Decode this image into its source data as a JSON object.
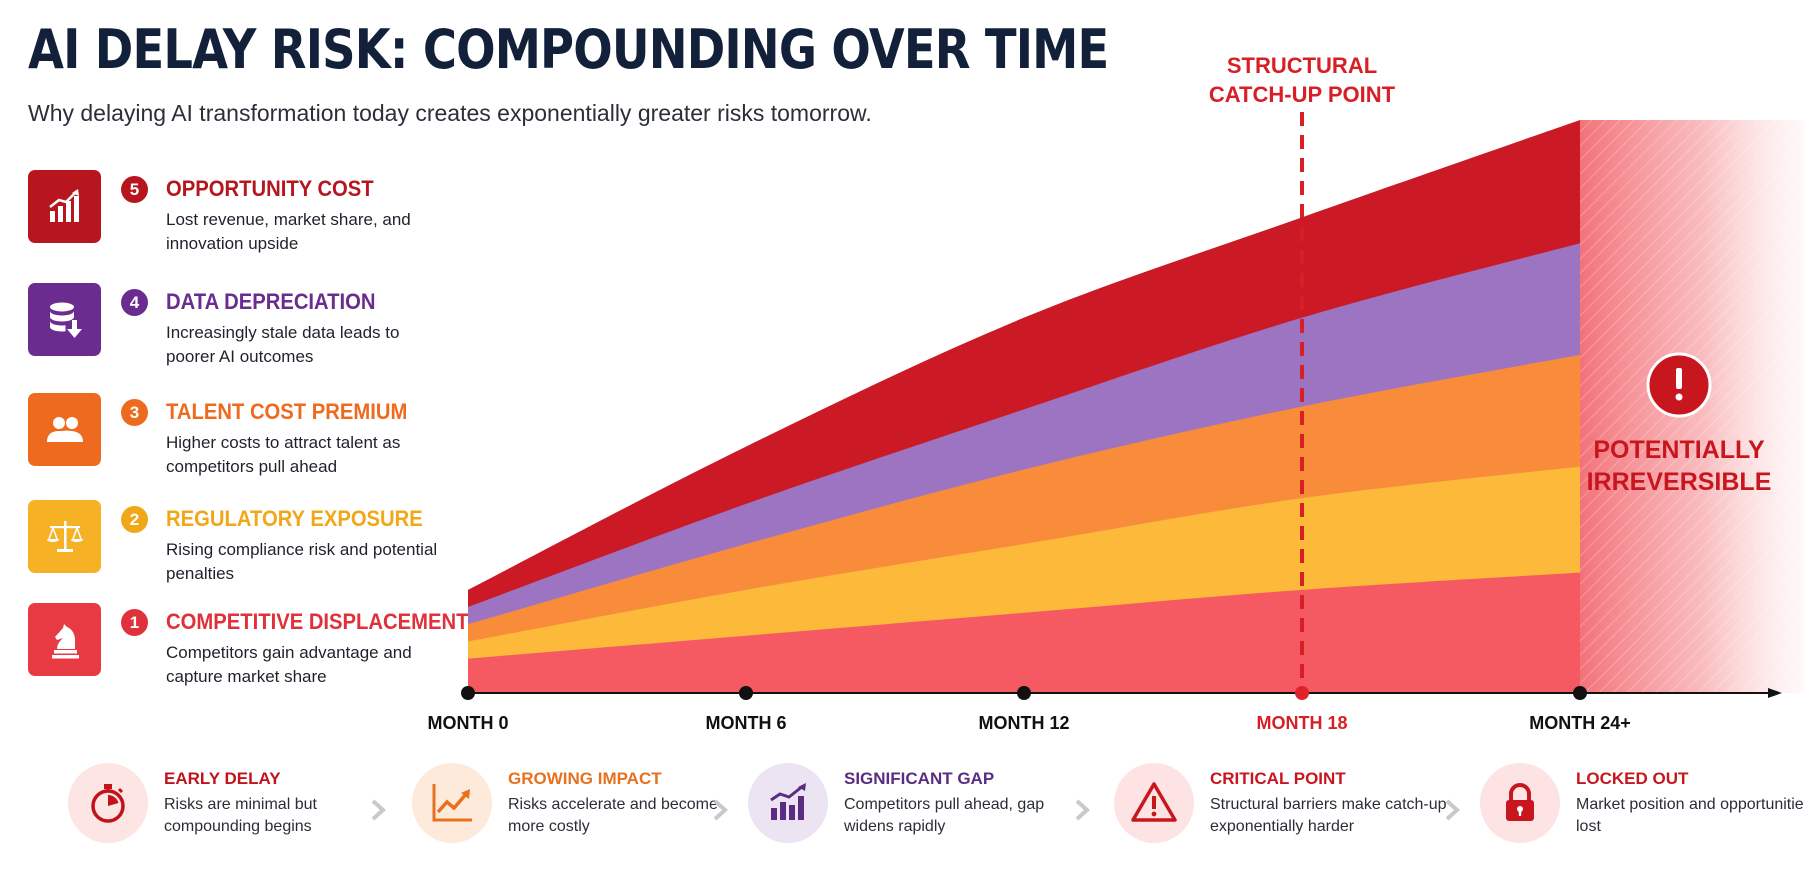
{
  "header": {
    "title": "AI DELAY RISK: COMPOUNDING OVER TIME",
    "subtitle": "Why delaying AI transformation today creates exponentially greater risks tomorrow."
  },
  "risks": [
    {
      "num": "5",
      "title": "OPPORTUNITY COST",
      "desc": "Lost revenue, market share, and innovation upside",
      "color": "#b8161f",
      "icon": "growth-chart-icon"
    },
    {
      "num": "4",
      "title": "DATA DEPRECIATION",
      "desc": "Increasingly stale data leads to poorer AI outcomes",
      "color": "#6b2c8f",
      "icon": "database-download-icon"
    },
    {
      "num": "3",
      "title": "TALENT COST PREMIUM",
      "desc": "Higher costs to attract talent as competitors pull ahead",
      "color": "#ee6a1f",
      "icon": "people-icon"
    },
    {
      "num": "2",
      "title": "REGULATORY EXPOSURE",
      "desc": "Rising compliance risk and potential penalties",
      "color": "#f0a818",
      "icon": "scales-icon"
    },
    {
      "num": "1",
      "title": "COMPETITIVE DISPLACEMENT",
      "desc": "Competitors gain advantage and capture market share",
      "color": "#e0313a",
      "icon": "chess-knight-icon"
    }
  ],
  "chart_data": {
    "type": "area",
    "stacked": true,
    "x_ticks": [
      "MONTH 0",
      "MONTH 6",
      "MONTH 12",
      "MONTH 18",
      "MONTH 24+"
    ],
    "x": [
      0,
      6,
      12,
      18,
      24
    ],
    "series": [
      {
        "name": "COMPETITIVE DISPLACEMENT",
        "color": "#f55a62",
        "values": [
          6,
          10,
          14,
          18,
          21
        ]
      },
      {
        "name": "REGULATORY EXPOSURE",
        "color": "#fdb93a",
        "values": [
          3,
          8,
          12,
          16,
          18.5
        ]
      },
      {
        "name": "TALENT COST PREMIUM",
        "color": "#f88c3a",
        "values": [
          3,
          8,
          13,
          16,
          19.5
        ]
      },
      {
        "name": "DATA DEPRECIATION",
        "color": "#9c74c2",
        "values": [
          3,
          7,
          10.5,
          15.5,
          19.5
        ]
      },
      {
        "name": "OPPORTUNITY COST",
        "color": "#cb1a26",
        "values": [
          3,
          10,
          16,
          17.5,
          21.5
        ]
      }
    ],
    "ylim": [
      0,
      100
    ],
    "marker": {
      "x": 18,
      "label_line1": "STRUCTURAL",
      "label_line2": "CATCH-UP POINT",
      "color": "#d81f26"
    },
    "irreversible_zone": {
      "from_x": 24,
      "label_line1": "POTENTIALLY",
      "label_line2": "IRREVERSIBLE",
      "icon": "alert-icon"
    },
    "highlight_tick": "MONTH 18",
    "grid": false
  },
  "stages": [
    {
      "title": "EARLY DELAY",
      "desc": "Risks are minimal but compounding begins",
      "color": "#c0131c",
      "bg": "#fde5e4",
      "icon": "stopwatch-icon"
    },
    {
      "title": "GROWING IMPACT",
      "desc": "Risks accelerate and become more costly",
      "color": "#e8711e",
      "bg": "#fdeadb",
      "icon": "trend-up-icon"
    },
    {
      "title": "SIGNIFICANT GAP",
      "desc": "Competitors pull ahead, gap widens rapidly",
      "color": "#5a2d82",
      "bg": "#ece4f3",
      "icon": "bar-growth-icon"
    },
    {
      "title": "CRITICAL POINT",
      "desc": "Structural barriers make catch-up exponentially harder",
      "color": "#c8161f",
      "bg": "#fde3e3",
      "icon": "warning-icon"
    },
    {
      "title": "LOCKED OUT",
      "desc": "Market position and opportunities lost",
      "color": "#c8161f",
      "bg": "#fde3e3",
      "icon": "lock-icon"
    }
  ]
}
